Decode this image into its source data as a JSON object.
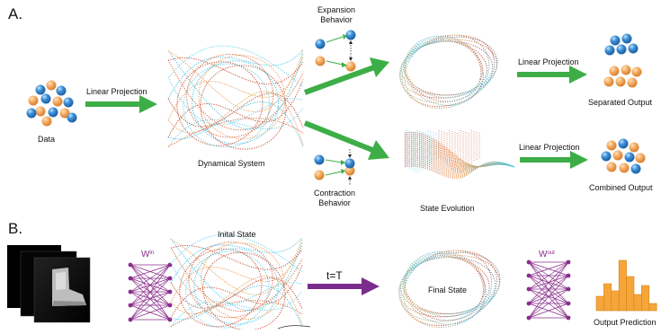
{
  "panelA": {
    "label": "A.",
    "data_label": "Data",
    "linear_projection_1": "Linear  Projection",
    "dynamical_system": "Dynamical System",
    "expansion_behavior": "Expansion Behavior",
    "contraction_behavior": "Contraction Behavior",
    "linear_projection_2": "Linear  Projection",
    "separated_output": "Separated Output",
    "state_evolution": "State Evolution",
    "linear_projection_3": "Linear  Projection",
    "combined_output": "Combined  Output"
  },
  "panelB": {
    "label": "B.",
    "w_in_base": "W",
    "w_in_sup": "in",
    "initial_state": "Inital State",
    "t_equals_T": "t=T",
    "final_state": "Final State",
    "w_out_base": "W",
    "w_out_sup": "out",
    "output_prediction": "Output Prediction"
  },
  "colors": {
    "green_arrow": "#3dae47",
    "purple_arrow": "#7b2d8e",
    "network_purple": "#8a2d8c",
    "sphere_blue": "#3c8fd6",
    "sphere_orange": "#f2a65a",
    "histogram_orange": "#f5a53a",
    "wave_cyan": "#49c6e5",
    "wave_red": "#c8503a"
  }
}
